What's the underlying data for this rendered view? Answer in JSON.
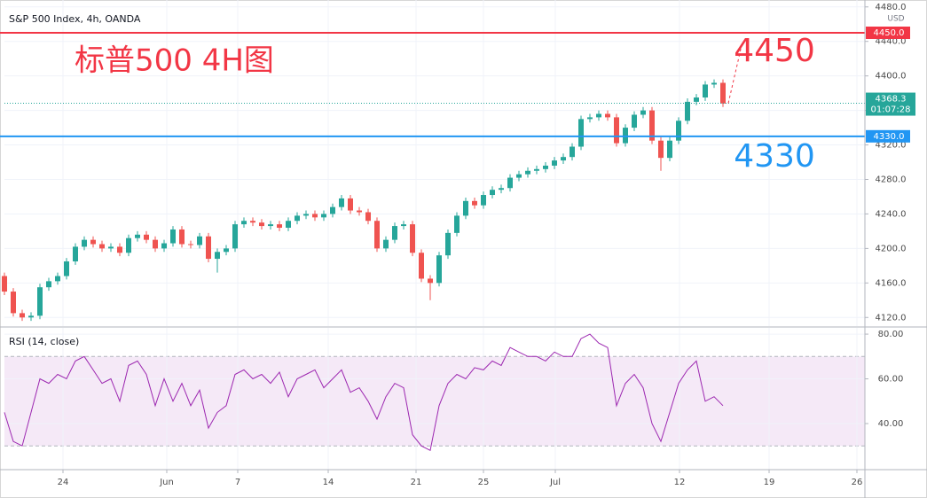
{
  "chart_data": [
    {
      "type": "candlestick",
      "title": "S&P 500 Index, 4h, OANDA",
      "currency": "USD",
      "x": [
        0,
        1,
        2,
        3,
        4,
        5,
        6,
        7,
        8,
        9,
        10,
        11,
        12,
        13,
        14,
        15,
        16,
        17,
        18,
        19,
        20,
        21,
        22,
        23,
        24,
        25,
        26,
        27,
        28,
        29,
        30,
        31,
        32,
        33,
        34,
        35,
        36,
        37,
        38,
        39,
        40,
        41,
        42,
        43,
        44,
        45,
        46,
        47,
        48,
        49,
        50,
        51,
        52,
        53,
        54,
        55,
        56,
        57,
        58,
        59,
        60,
        61,
        62,
        63,
        64,
        65,
        66,
        67,
        68,
        69,
        70,
        71,
        72,
        73,
        74,
        75,
        76,
        77,
        78,
        79,
        80,
        81
      ],
      "open": [
        4168,
        4150,
        4125,
        4120,
        4122,
        4155,
        4162,
        4168,
        4185,
        4202,
        4210,
        4205,
        4200,
        4202,
        4195,
        4212,
        4216,
        4210,
        4200,
        4206,
        4222,
        4205,
        4204,
        4214,
        4188,
        4196,
        4200,
        4228,
        4232,
        4230,
        4226,
        4228,
        4224,
        4232,
        4238,
        4240,
        4236,
        4240,
        4248,
        4258,
        4244,
        4242,
        4232,
        4200,
        4210,
        4226,
        4228,
        4195,
        4165,
        4160,
        4192,
        4218,
        4238,
        4255,
        4250,
        4262,
        4268,
        4270,
        4282,
        4286,
        4290,
        4292,
        4296,
        4302,
        4306,
        4318,
        4350,
        4352,
        4356,
        4352,
        4322,
        4340,
        4355,
        4360,
        4325,
        4305,
        4325,
        4348,
        4370,
        4375,
        4390,
        4392
      ],
      "high": [
        4172,
        4154,
        4129,
        4126,
        4159,
        4166,
        4172,
        4189,
        4206,
        4214,
        4214,
        4209,
        4206,
        4206,
        4216,
        4220,
        4220,
        4214,
        4210,
        4226,
        4226,
        4209,
        4218,
        4218,
        4200,
        4204,
        4232,
        4236,
        4236,
        4234,
        4232,
        4232,
        4236,
        4242,
        4244,
        4244,
        4244,
        4252,
        4262,
        4262,
        4248,
        4246,
        4236,
        4214,
        4230,
        4232,
        4232,
        4199,
        4169,
        4196,
        4222,
        4242,
        4259,
        4259,
        4266,
        4272,
        4274,
        4286,
        4290,
        4294,
        4296,
        4300,
        4306,
        4310,
        4322,
        4354,
        4356,
        4360,
        4360,
        4356,
        4344,
        4359,
        4364,
        4364,
        4329,
        4329,
        4352,
        4374,
        4379,
        4394,
        4396,
        4396
      ],
      "low": [
        4146,
        4121,
        4116,
        4116,
        4118,
        4151,
        4158,
        4164,
        4181,
        4198,
        4201,
        4196,
        4196,
        4191,
        4191,
        4208,
        4206,
        4196,
        4196,
        4202,
        4201,
        4200,
        4200,
        4184,
        4172,
        4192,
        4196,
        4224,
        4226,
        4222,
        4222,
        4220,
        4220,
        4228,
        4234,
        4232,
        4232,
        4236,
        4244,
        4240,
        4238,
        4228,
        4196,
        4196,
        4206,
        4222,
        4191,
        4161,
        4140,
        4156,
        4188,
        4214,
        4234,
        4246,
        4246,
        4258,
        4264,
        4266,
        4278,
        4282,
        4286,
        4288,
        4292,
        4298,
        4302,
        4314,
        4346,
        4348,
        4348,
        4318,
        4318,
        4336,
        4351,
        4321,
        4290,
        4301,
        4321,
        4344,
        4366,
        4371,
        4386,
        4364
      ],
      "close": [
        4150,
        4125,
        4120,
        4122,
        4155,
        4162,
        4168,
        4185,
        4202,
        4210,
        4205,
        4200,
        4202,
        4195,
        4212,
        4216,
        4210,
        4200,
        4206,
        4222,
        4205,
        4204,
        4214,
        4188,
        4196,
        4200,
        4228,
        4232,
        4230,
        4226,
        4228,
        4224,
        4232,
        4238,
        4240,
        4236,
        4240,
        4248,
        4258,
        4244,
        4242,
        4232,
        4200,
        4210,
        4226,
        4228,
        4195,
        4165,
        4160,
        4192,
        4218,
        4238,
        4255,
        4250,
        4262,
        4268,
        4270,
        4282,
        4286,
        4290,
        4292,
        4296,
        4302,
        4306,
        4318,
        4350,
        4352,
        4356,
        4352,
        4322,
        4340,
        4355,
        4360,
        4325,
        4305,
        4325,
        4348,
        4370,
        4375,
        4390,
        4392,
        4368
      ],
      "up_color": "#26a69a",
      "down_color": "#ef5350",
      "xlim": [
        0,
        97
      ],
      "ylim": [
        4110,
        4488
      ],
      "yticks": [
        {
          "value": 4120,
          "label": "4120.0"
        },
        {
          "value": 4160,
          "label": "4160.0"
        },
        {
          "value": 4200,
          "label": "4200.0"
        },
        {
          "value": 4240,
          "label": "4240.0"
        },
        {
          "value": 4280,
          "label": "4280.0"
        },
        {
          "value": 4320,
          "label": "4320.0"
        },
        {
          "value": 4360,
          "label": "4360.0"
        },
        {
          "value": 4400,
          "label": "4400.0"
        },
        {
          "value": 4440,
          "label": "4440.0"
        },
        {
          "value": 4480,
          "label": "4480.0"
        }
      ],
      "levels": [
        {
          "value": 4450,
          "label": "4450.0",
          "color": "#f23645",
          "annotation": "4450"
        },
        {
          "value": 4330,
          "label": "4330.0",
          "color": "#2196f3",
          "annotation": "4330"
        }
      ],
      "last_price": 4368.3,
      "countdown": "01:07:28",
      "annotation": "标普500 4H图",
      "annotation_color": "#f23645",
      "grid": true
    },
    {
      "type": "line",
      "title": "RSI (14, close)",
      "x": [
        0,
        1,
        2,
        3,
        4,
        5,
        6,
        7,
        8,
        9,
        10,
        11,
        12,
        13,
        14,
        15,
        16,
        17,
        18,
        19,
        20,
        21,
        22,
        23,
        24,
        25,
        26,
        27,
        28,
        29,
        30,
        31,
        32,
        33,
        34,
        35,
        36,
        37,
        38,
        39,
        40,
        41,
        42,
        43,
        44,
        45,
        46,
        47,
        48,
        49,
        50,
        51,
        52,
        53,
        54,
        55,
        56,
        57,
        58,
        59,
        60,
        61,
        62,
        63,
        64,
        65,
        66,
        67,
        68,
        69,
        70,
        71,
        72,
        73,
        74,
        75,
        76,
        77,
        78,
        79,
        80,
        81
      ],
      "values": [
        45,
        32,
        30,
        45,
        60,
        58,
        62,
        60,
        68,
        70,
        64,
        58,
        60,
        50,
        66,
        68,
        62,
        48,
        60,
        50,
        58,
        48,
        55,
        38,
        45,
        48,
        62,
        64,
        60,
        62,
        58,
        63,
        52,
        60,
        62,
        64,
        56,
        60,
        64,
        54,
        56,
        50,
        42,
        52,
        58,
        56,
        35,
        30,
        28,
        48,
        58,
        62,
        60,
        65,
        64,
        68,
        66,
        74,
        72,
        70,
        70,
        68,
        72,
        70,
        70,
        78,
        80,
        76,
        74,
        48,
        58,
        62,
        56,
        40,
        32,
        45,
        58,
        64,
        68,
        50,
        52,
        48
      ],
      "color": "#9c27b0",
      "band": [
        30,
        70
      ],
      "band_color": "#9c27b0",
      "xlim": [
        0,
        97
      ],
      "ylim": [
        19.4,
        82.8
      ],
      "yticks": [
        {
          "value": 40,
          "label": "40.00"
        },
        {
          "value": 60,
          "label": "60.00"
        },
        {
          "value": 80,
          "label": "80.00"
        }
      ],
      "xticks": [
        {
          "value": 6.6,
          "label": "24"
        },
        {
          "value": 18.3,
          "label": "Jun"
        },
        {
          "value": 26.3,
          "label": "7"
        },
        {
          "value": 36.5,
          "label": "14"
        },
        {
          "value": 46.4,
          "label": "21"
        },
        {
          "value": 54,
          "label": "25"
        },
        {
          "value": 62.1,
          "label": "Jul"
        },
        {
          "value": 76.1,
          "label": "12"
        },
        {
          "value": 86.2,
          "label": "19"
        },
        {
          "value": 96.1,
          "label": "26"
        }
      ],
      "grid": true
    }
  ]
}
